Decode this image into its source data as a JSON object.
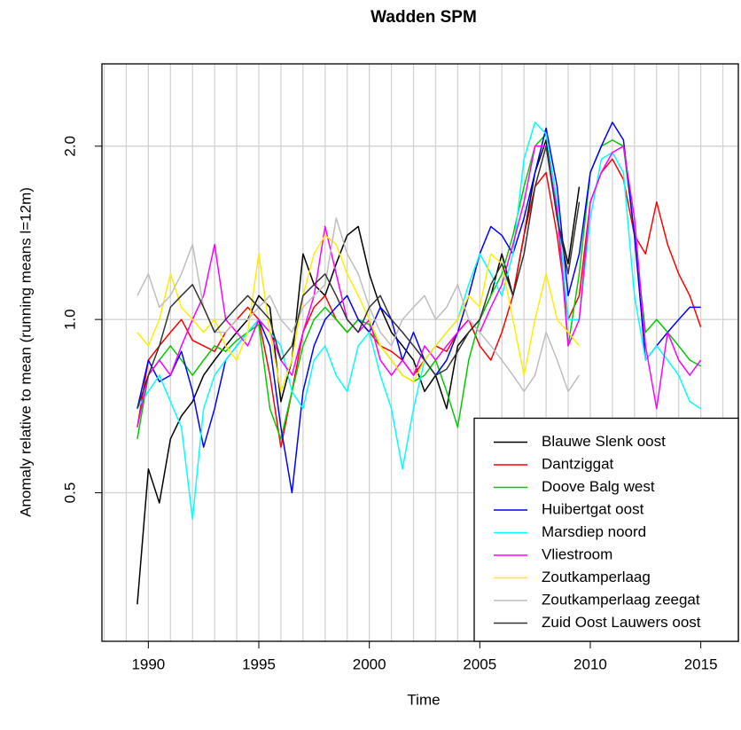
{
  "chart_data": {
    "type": "line",
    "title": "Wadden SPM",
    "xlabel": "Time",
    "ylabel": "Anomaly relative to mean (running means l=12m)",
    "log_y": true,
    "grid": true,
    "legend": "bottom-right",
    "xlim": [
      1987.9,
      2016.7
    ],
    "xticks": [
      1990,
      1995,
      2000,
      2005,
      2010,
      2015
    ],
    "ylim": [
      0.276,
      2.78
    ],
    "yticks": [
      0.5,
      {
        "value": 1,
        "label": "1.0"
      },
      {
        "value": 2,
        "label": "2.0"
      }
    ],
    "x": [
      1989.5,
      1990,
      1990.5,
      1991,
      1991.5,
      1992,
      1992.5,
      1993,
      1993.5,
      1994,
      1994.5,
      1995,
      1995.5,
      1996,
      1996.5,
      1997,
      1997.5,
      1998,
      1998.5,
      1999,
      1999.5,
      2000,
      2000.5,
      2001,
      2001.5,
      2002,
      2002.5,
      2003,
      2003.5,
      2004,
      2004.5,
      2005,
      2005.5,
      2006,
      2006.5,
      2007,
      2007.5,
      2008,
      2008.5,
      2009,
      2009.5,
      2010,
      2010.5,
      2011,
      2011.5,
      2012,
      2012.5,
      2013,
      2013.5,
      2014,
      2014.5,
      2015
    ],
    "series": [
      {
        "name": "Blauwe Slenk oost",
        "color": "#000000",
        "values": [
          0.32,
          0.55,
          0.48,
          0.62,
          0.68,
          0.72,
          0.8,
          0.85,
          0.9,
          0.95,
          1.0,
          1.1,
          1.05,
          0.72,
          0.85,
          1.3,
          1.15,
          1.1,
          1.25,
          1.4,
          1.45,
          1.2,
          1.05,
          0.95,
          0.9,
          0.85,
          0.75,
          0.8,
          0.7,
          0.9,
          0.95,
          1.0,
          1.1,
          1.3,
          1.1,
          1.4,
          1.8,
          2.05,
          1.5,
          1.25,
          1.7,
          null,
          null,
          null,
          null,
          null,
          null,
          null,
          null,
          null,
          null,
          null
        ]
      },
      {
        "name": "Dantziggat",
        "color": "#ff0000",
        "values": [
          0.65,
          0.85,
          0.9,
          0.95,
          1.0,
          0.92,
          0.9,
          0.88,
          0.95,
          1.0,
          1.05,
          1.0,
          0.8,
          0.6,
          0.75,
          0.95,
          1.05,
          1.1,
          1.0,
          0.95,
          1.0,
          0.95,
          0.9,
          0.88,
          0.85,
          0.8,
          0.85,
          0.9,
          0.88,
          0.95,
          1.0,
          0.9,
          0.85,
          0.95,
          1.1,
          1.4,
          1.7,
          1.8,
          1.4,
          1.0,
          1.1,
          1.6,
          1.8,
          1.9,
          1.75,
          1.4,
          1.3,
          1.6,
          1.35,
          1.2,
          1.1,
          0.97
        ]
      },
      {
        "name": "Doove Balg west",
        "color": "#00cd00",
        "values": [
          0.62,
          0.8,
          0.85,
          0.9,
          0.85,
          0.8,
          0.85,
          0.9,
          0.88,
          0.92,
          0.95,
          0.98,
          0.7,
          0.62,
          0.75,
          0.9,
          1.0,
          1.05,
          1.0,
          0.95,
          1.0,
          0.98,
          0.9,
          0.85,
          0.8,
          0.78,
          0.8,
          0.85,
          0.75,
          0.65,
          0.85,
          1.0,
          1.1,
          1.2,
          1.4,
          1.7,
          2.0,
          2.1,
          1.6,
          0.9,
          1.2,
          1.8,
          2.0,
          2.05,
          2.0,
          1.4,
          0.95,
          1.0,
          0.95,
          0.9,
          0.85,
          0.83
        ]
      },
      {
        "name": "Huibertgat oost",
        "color": "#0000ff",
        "values": [
          0.7,
          0.85,
          0.78,
          0.8,
          0.88,
          0.75,
          0.6,
          0.7,
          0.85,
          0.9,
          0.95,
          1.0,
          0.9,
          0.65,
          0.5,
          0.75,
          0.9,
          1.0,
          1.05,
          1.1,
          1.0,
          0.95,
          1.05,
          1.0,
          0.85,
          0.95,
          0.85,
          0.8,
          0.85,
          0.95,
          1.1,
          1.3,
          1.45,
          1.4,
          1.3,
          1.5,
          1.8,
          2.15,
          1.7,
          1.1,
          1.3,
          1.8,
          2.0,
          2.2,
          2.05,
          1.4,
          0.85,
          0.9,
          0.95,
          1.0,
          1.05,
          1.05
        ]
      },
      {
        "name": "Marsdiep noord",
        "color": "#00ffff",
        "values": [
          0.7,
          0.75,
          0.8,
          0.72,
          0.65,
          0.45,
          0.7,
          0.8,
          0.85,
          0.9,
          0.95,
          1.0,
          0.95,
          0.9,
          0.75,
          0.7,
          0.85,
          0.9,
          0.8,
          0.75,
          0.9,
          0.95,
          0.8,
          0.7,
          0.55,
          0.7,
          0.85,
          0.9,
          0.95,
          1.0,
          1.15,
          1.3,
          1.2,
          1.1,
          1.3,
          1.9,
          2.2,
          2.1,
          1.6,
          1.0,
          1.0,
          1.5,
          1.9,
          1.95,
          1.8,
          1.1,
          0.85,
          0.9,
          0.85,
          0.8,
          0.72,
          0.7
        ]
      },
      {
        "name": "Vliestroom",
        "color": "#ff00ff",
        "values": [
          0.65,
          0.8,
          0.85,
          0.8,
          0.9,
          1.0,
          1.1,
          1.35,
          1.0,
          0.95,
          0.9,
          1.0,
          0.95,
          0.85,
          0.8,
          0.95,
          1.1,
          1.45,
          1.2,
          1.0,
          0.95,
          1.0,
          0.85,
          0.8,
          0.85,
          0.8,
          0.9,
          0.85,
          0.9,
          0.95,
          1.0,
          0.95,
          1.05,
          1.15,
          1.35,
          1.6,
          2.0,
          2.0,
          1.55,
          0.9,
          1.0,
          1.6,
          1.8,
          1.95,
          2.0,
          1.5,
          0.9,
          0.7,
          0.95,
          0.85,
          0.8,
          0.85
        ]
      },
      {
        "name": "Zoutkamperlaag",
        "color": "#ffee00",
        "values": [
          0.95,
          0.9,
          1.0,
          1.2,
          1.05,
          1.0,
          0.95,
          1.0,
          0.9,
          0.85,
          0.95,
          1.3,
          0.95,
          0.75,
          0.85,
          1.1,
          1.3,
          1.4,
          1.35,
          1.2,
          1.1,
          1.0,
          0.9,
          0.85,
          0.8,
          0.78,
          0.85,
          0.9,
          0.95,
          1.0,
          1.1,
          1.05,
          1.3,
          1.25,
          1.0,
          0.8,
          1.0,
          1.2,
          1.0,
          0.95,
          0.9,
          null,
          null,
          null,
          null,
          null,
          null,
          null,
          null,
          null,
          null,
          null
        ]
      },
      {
        "name": "Zoutkamperlaag zeegat",
        "color": "#bebebe",
        "values": [
          1.1,
          1.2,
          1.05,
          1.1,
          1.2,
          1.35,
          1.05,
          0.95,
          0.95,
          1.0,
          1.0,
          1.05,
          1.1,
          1.0,
          0.95,
          1.05,
          1.1,
          1.15,
          1.5,
          1.3,
          1.2,
          1.05,
          0.95,
          0.9,
          1.0,
          1.05,
          1.1,
          1.0,
          1.05,
          1.15,
          1.0,
          0.95,
          0.9,
          0.85,
          0.8,
          0.75,
          0.8,
          0.95,
          0.85,
          0.75,
          0.8,
          null,
          null,
          null,
          null,
          null,
          null,
          null,
          null,
          null,
          null,
          null
        ]
      },
      {
        "name": "Zuid Oost Lauwers oost",
        "color": "#333333",
        "values": [
          0.7,
          0.8,
          0.9,
          1.05,
          1.1,
          1.15,
          1.05,
          0.95,
          1.0,
          1.05,
          1.1,
          1.05,
          1.0,
          0.85,
          0.9,
          1.1,
          1.15,
          1.2,
          1.1,
          1.0,
          0.95,
          1.05,
          1.1,
          1.0,
          0.95,
          0.9,
          0.85,
          0.8,
          0.82,
          0.88,
          0.95,
          1.0,
          1.15,
          1.25,
          1.1,
          1.3,
          1.7,
          2.0,
          1.5,
          1.2,
          1.6,
          null,
          null,
          null,
          null,
          null,
          null,
          null,
          null,
          null,
          null,
          null
        ]
      }
    ]
  }
}
